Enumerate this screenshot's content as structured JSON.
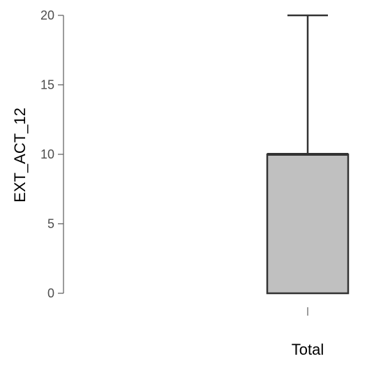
{
  "chart_data": {
    "type": "box",
    "title": "",
    "xlabel": "",
    "ylabel": "EXT_ACT_12",
    "ylim": [
      0,
      20
    ],
    "yticks": [
      0,
      5,
      10,
      15,
      20
    ],
    "ytick_labels": [
      "0",
      "5",
      "10",
      "15",
      "20"
    ],
    "categories": [
      "Total"
    ],
    "boxes": [
      {
        "category": "Total",
        "min": 0,
        "q1": 0,
        "median": 10,
        "q3": 10,
        "max": 20,
        "fill_color": "#c0c0c0",
        "stroke_color": "#333333"
      }
    ],
    "grid": false,
    "legend": "none"
  }
}
